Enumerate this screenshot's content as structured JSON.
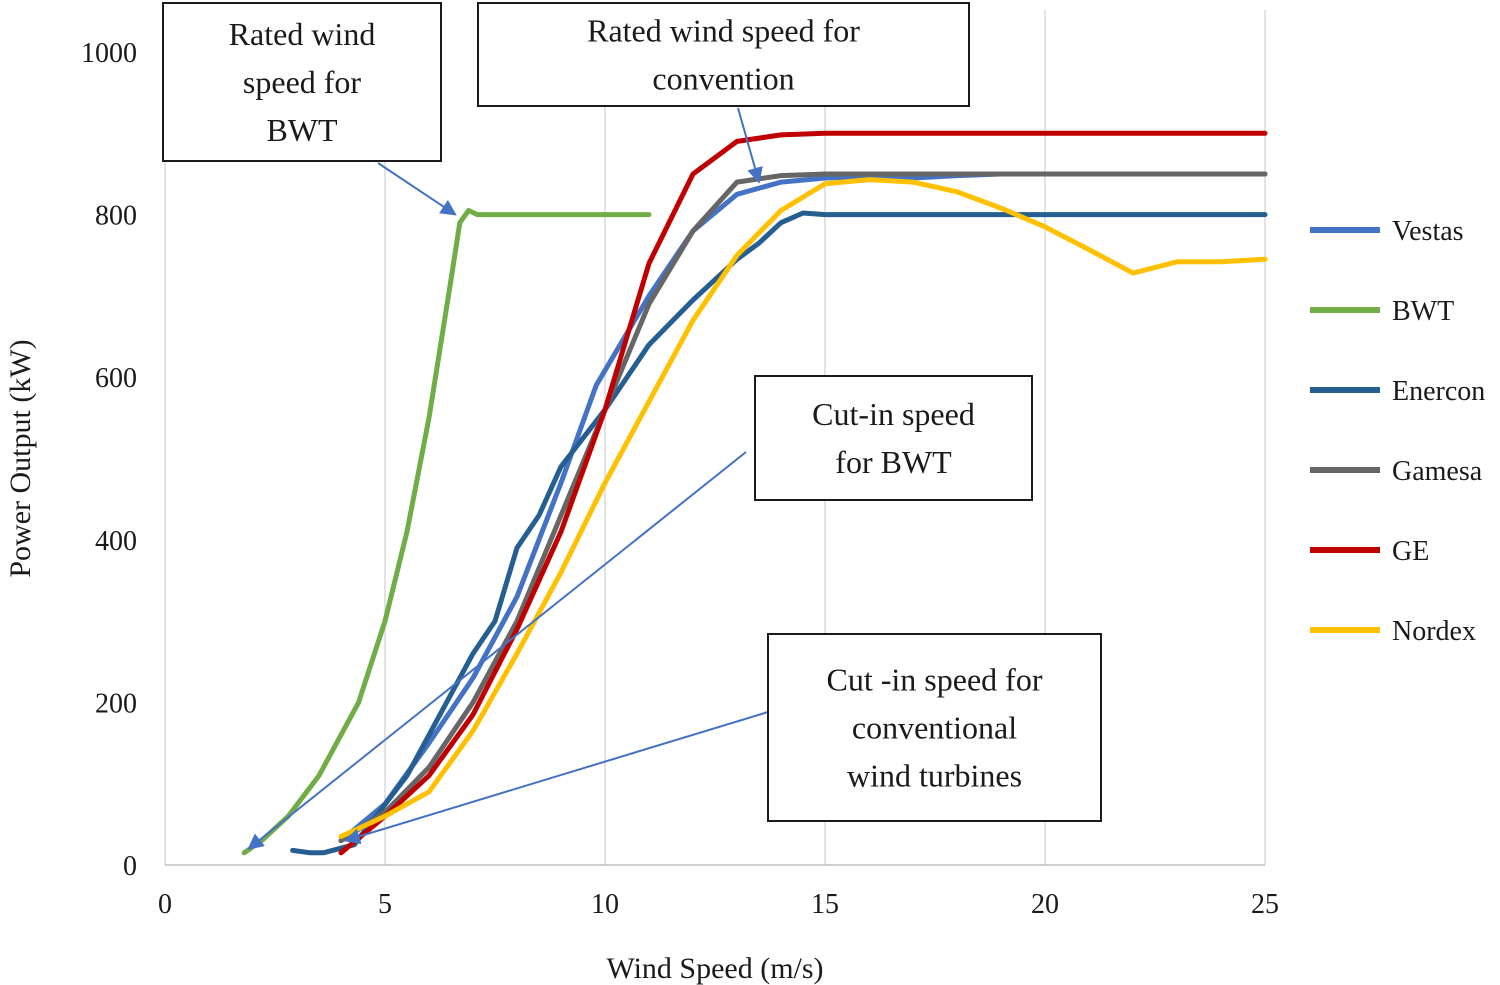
{
  "chart_data": {
    "type": "line",
    "title": "",
    "xlabel": "Wind Speed (m/s)",
    "ylabel": "Power Output (kW)",
    "xlim": [
      0,
      25
    ],
    "ylim": [
      0,
      1000
    ],
    "xticks": [
      0,
      5,
      10,
      15,
      20,
      25
    ],
    "yticks": [
      0,
      200,
      400,
      600,
      800,
      1000
    ],
    "grid": "vertical",
    "legend_position": "right",
    "series": [
      {
        "name": "Vestas",
        "color": "#4472C4",
        "points": [
          [
            4,
            30
          ],
          [
            5,
            75
          ],
          [
            6,
            150
          ],
          [
            7,
            230
          ],
          [
            8,
            330
          ],
          [
            9,
            470
          ],
          [
            9.8,
            590
          ],
          [
            11,
            700
          ],
          [
            12,
            780
          ],
          [
            13,
            825
          ],
          [
            14,
            840
          ],
          [
            15,
            845
          ],
          [
            16,
            847
          ],
          [
            17,
            845
          ],
          [
            18,
            848
          ],
          [
            19,
            850
          ],
          [
            20,
            850
          ],
          [
            25,
            850
          ]
        ]
      },
      {
        "name": "BWT",
        "color": "#70AD47",
        "points": [
          [
            1.8,
            15
          ],
          [
            2.2,
            30
          ],
          [
            2.8,
            60
          ],
          [
            3.5,
            110
          ],
          [
            4.4,
            200
          ],
          [
            5,
            300
          ],
          [
            5.5,
            410
          ],
          [
            6,
            550
          ],
          [
            6.5,
            720
          ],
          [
            6.7,
            790
          ],
          [
            6.9,
            805
          ],
          [
            7.1,
            800
          ],
          [
            8,
            800
          ],
          [
            9,
            800
          ],
          [
            10,
            800
          ],
          [
            11,
            800
          ]
        ]
      },
      {
        "name": "Enercon",
        "color": "#255E91",
        "points": [
          [
            2.9,
            18
          ],
          [
            3.3,
            15
          ],
          [
            3.6,
            15
          ],
          [
            4.3,
            25
          ],
          [
            5.5,
            110
          ],
          [
            6,
            160
          ],
          [
            7,
            260
          ],
          [
            7.5,
            300
          ],
          [
            8,
            390
          ],
          [
            8.5,
            430
          ],
          [
            9,
            490
          ],
          [
            10,
            560
          ],
          [
            11,
            640
          ],
          [
            12,
            695
          ],
          [
            13,
            745
          ],
          [
            13.5,
            765
          ],
          [
            14,
            790
          ],
          [
            14.5,
            802
          ],
          [
            15,
            800
          ],
          [
            20,
            800
          ],
          [
            25,
            800
          ]
        ]
      },
      {
        "name": "Gamesa",
        "color": "#666666",
        "points": [
          [
            4,
            30
          ],
          [
            5,
            65
          ],
          [
            6,
            120
          ],
          [
            7,
            200
          ],
          [
            8,
            300
          ],
          [
            9,
            430
          ],
          [
            10,
            560
          ],
          [
            11,
            690
          ],
          [
            12,
            780
          ],
          [
            13,
            840
          ],
          [
            14,
            848
          ],
          [
            15,
            850
          ],
          [
            20,
            850
          ],
          [
            25,
            850
          ]
        ]
      },
      {
        "name": "GE",
        "color": "#C00000",
        "points": [
          [
            4,
            15
          ],
          [
            5,
            60
          ],
          [
            6,
            110
          ],
          [
            7,
            185
          ],
          [
            8,
            290
          ],
          [
            9,
            410
          ],
          [
            10,
            560
          ],
          [
            11,
            740
          ],
          [
            12,
            850
          ],
          [
            13,
            890
          ],
          [
            14,
            898
          ],
          [
            15,
            900
          ],
          [
            20,
            900
          ],
          [
            25,
            900
          ]
        ]
      },
      {
        "name": "Nordex",
        "color": "#FFC000",
        "points": [
          [
            4,
            35
          ],
          [
            5,
            60
          ],
          [
            6,
            90
          ],
          [
            7,
            165
          ],
          [
            8,
            260
          ],
          [
            9,
            360
          ],
          [
            10,
            470
          ],
          [
            11,
            570
          ],
          [
            12,
            670
          ],
          [
            13,
            750
          ],
          [
            14,
            805
          ],
          [
            15,
            838
          ],
          [
            16,
            843
          ],
          [
            17,
            840
          ],
          [
            18,
            828
          ],
          [
            19,
            808
          ],
          [
            20,
            785
          ],
          [
            21,
            757
          ],
          [
            22,
            728
          ],
          [
            23,
            742
          ],
          [
            24,
            742
          ],
          [
            25,
            745
          ]
        ]
      }
    ],
    "annotations": [
      {
        "lines": [
          "Rated wind",
          "speed for",
          "BWT"
        ],
        "target": [
          6.6,
          800
        ]
      },
      {
        "lines": [
          "Rated wind speed for",
          "convention"
        ],
        "target": [
          13.5,
          840
        ]
      },
      {
        "lines": [
          "Cut-in speed",
          "for BWT"
        ],
        "target": [
          1.9,
          20
        ]
      },
      {
        "lines": [
          "Cut -in speed for",
          "conventional",
          "wind turbines"
        ],
        "target": [
          4.1,
          30
        ]
      }
    ]
  }
}
